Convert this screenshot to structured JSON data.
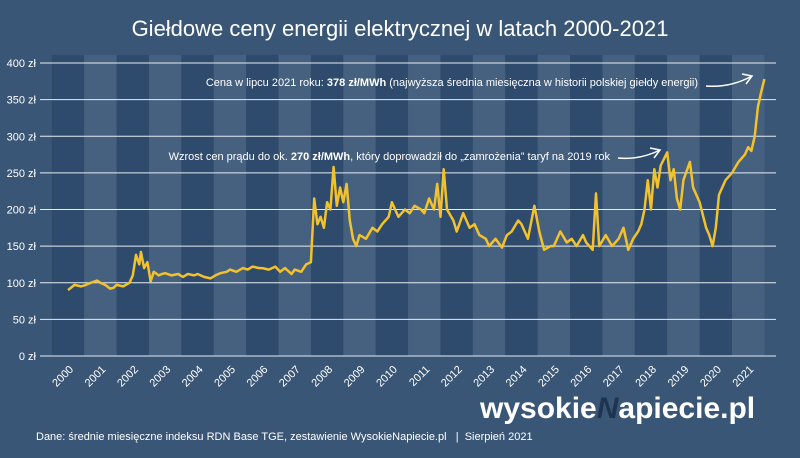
{
  "chart_data": {
    "type": "line",
    "title": "Giełdowe ceny energii elektrycznej w latach 2000-2021",
    "x": [
      2000.0,
      2000.2,
      2000.4,
      2000.55,
      2000.7,
      2000.9,
      2001.0,
      2001.15,
      2001.3,
      2001.4,
      2001.5,
      2001.7,
      2001.9,
      2002.0,
      2002.1,
      2002.2,
      2002.25,
      2002.35,
      2002.45,
      2002.55,
      2002.65,
      2002.8,
      2002.9,
      2003.0,
      2003.2,
      2003.4,
      2003.55,
      2003.7,
      2003.9,
      2004.0,
      2004.2,
      2004.4,
      2004.55,
      2004.7,
      2004.9,
      2005.0,
      2005.2,
      2005.4,
      2005.55,
      2005.7,
      2005.9,
      2006.0,
      2006.2,
      2006.4,
      2006.55,
      2006.7,
      2006.9,
      2007.0,
      2007.2,
      2007.35,
      2007.5,
      2007.6,
      2007.7,
      2007.8,
      2007.9,
      2008.0,
      2008.1,
      2008.2,
      2008.3,
      2008.4,
      2008.5,
      2008.6,
      2008.7,
      2008.8,
      2008.9,
      2009.0,
      2009.2,
      2009.4,
      2009.55,
      2009.7,
      2009.9,
      2010.0,
      2010.2,
      2010.4,
      2010.55,
      2010.7,
      2010.9,
      2011.0,
      2011.15,
      2011.3,
      2011.4,
      2011.5,
      2011.6,
      2011.7,
      2011.9,
      2012.0,
      2012.2,
      2012.4,
      2012.55,
      2012.7,
      2012.9,
      2013.0,
      2013.2,
      2013.4,
      2013.55,
      2013.7,
      2013.9,
      2014.0,
      2014.2,
      2014.4,
      2014.55,
      2014.7,
      2014.9,
      2015.0,
      2015.2,
      2015.4,
      2015.55,
      2015.7,
      2015.9,
      2016.0,
      2016.2,
      2016.3,
      2016.4,
      2016.6,
      2016.8,
      2017.0,
      2017.15,
      2017.3,
      2017.45,
      2017.6,
      2017.7,
      2017.8,
      2017.9,
      2018.0,
      2018.1,
      2018.2,
      2018.3,
      2018.5,
      2018.6,
      2018.7,
      2018.8,
      2018.9,
      2019.0,
      2019.2,
      2019.3,
      2019.5,
      2019.7,
      2019.8,
      2019.9,
      2020.0,
      2020.1,
      2020.3,
      2020.5,
      2020.7,
      2020.9,
      2021.0,
      2021.1,
      2021.2,
      2021.3,
      2021.4,
      2021.5
    ],
    "series": [
      {
        "name": "Cena",
        "color": "#f2c12e",
        "values": [
          90,
          97,
          95,
          97,
          100,
          103,
          100,
          97,
          92,
          93,
          97,
          95,
          100,
          110,
          138,
          125,
          142,
          120,
          128,
          102,
          115,
          110,
          112,
          113,
          110,
          112,
          108,
          112,
          110,
          112,
          108,
          106,
          110,
          113,
          115,
          118,
          115,
          120,
          118,
          122,
          120,
          120,
          118,
          122,
          115,
          120,
          112,
          118,
          115,
          125,
          128,
          215,
          180,
          190,
          175,
          210,
          200,
          258,
          205,
          230,
          210,
          235,
          185,
          160,
          150,
          165,
          160,
          175,
          170,
          180,
          190,
          210,
          190,
          200,
          195,
          205,
          200,
          195,
          215,
          200,
          235,
          190,
          255,
          200,
          185,
          170,
          195,
          175,
          180,
          165,
          160,
          150,
          160,
          148,
          165,
          170,
          185,
          180,
          160,
          205,
          170,
          145,
          150,
          150,
          170,
          155,
          160,
          150,
          165,
          155,
          145,
          222,
          150,
          165,
          150,
          160,
          175,
          145,
          160,
          170,
          180,
          200,
          240,
          200,
          255,
          230,
          260,
          278,
          240,
          255,
          215,
          200,
          240,
          265,
          230,
          210,
          175,
          165,
          150,
          175,
          220,
          240,
          250,
          265,
          275,
          285,
          280,
          300,
          340,
          360,
          378
        ]
      }
    ],
    "xlim": [
      2000,
      2021.55
    ],
    "xticks": [
      2000,
      2001,
      2002,
      2003,
      2004,
      2005,
      2006,
      2007,
      2008,
      2009,
      2010,
      2011,
      2012,
      2013,
      2014,
      2015,
      2016,
      2017,
      2018,
      2019,
      2020,
      2021
    ],
    "ylim": [
      0,
      400
    ],
    "yticks": [
      {
        "value": 0,
        "label": "0 zł"
      },
      {
        "value": 50,
        "label": "50 zł"
      },
      {
        "value": 100,
        "label": "100 zł"
      },
      {
        "value": 150,
        "label": "150 zł"
      },
      {
        "value": 200,
        "label": "200 zł"
      },
      {
        "value": 250,
        "label": "250 zł"
      },
      {
        "value": 300,
        "label": "300 zł"
      },
      {
        "value": 350,
        "label": "350 zł"
      },
      {
        "value": 400,
        "label": "400 zł"
      }
    ],
    "grid": true,
    "annotations": [
      {
        "parts": [
          "Cena w lipcu 2021 roku: ",
          "378 zł/MWh",
          " (najwyższa średnia miesięczna w historii polskiej giełdy energii)"
        ]
      },
      {
        "parts": [
          "Wzrost cen prądu do ok. ",
          "270 zł/MWh",
          ", który doprowadził do „zamrożenia” taryf na 2019 rok"
        ]
      }
    ],
    "watermark": [
      "wysokie",
      "N",
      "apiecie.pl"
    ],
    "footer": "Dane: średnie miesięczne indeksu RDN Base TGE, zestawienie WysokieNapiecie.pl   |  Sierpień 2021"
  }
}
